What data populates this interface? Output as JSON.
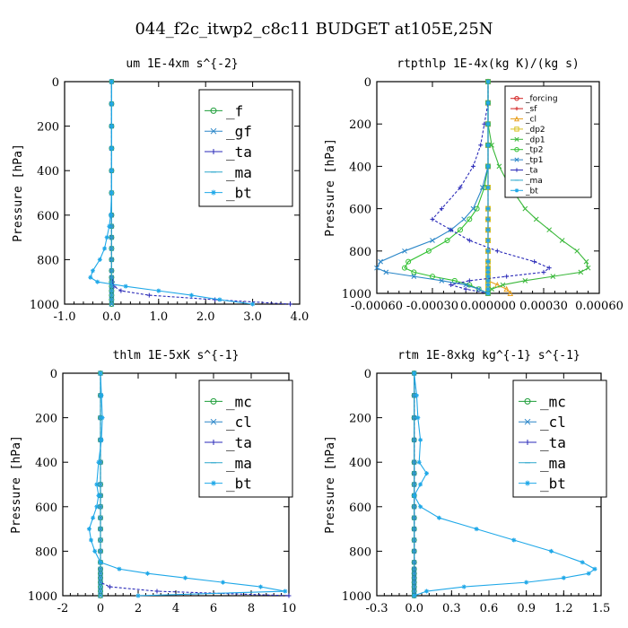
{
  "figure": {
    "title": "044_f2c_itwp2_c8c11  BUDGET at105E,25N"
  },
  "chart_data": [
    {
      "type": "line",
      "title": "um  1E-4xm s^{-2}",
      "ylabel": "Pressure [hPa]",
      "xlim": [
        -1.0,
        4.0
      ],
      "ylim": [
        1000,
        0
      ],
      "xticks": [
        -1.0,
        0.0,
        1.0,
        2.0,
        3.0,
        4.0
      ],
      "xtick_labels": [
        "-1.0",
        "0.0",
        "1.0",
        "2.0",
        "3.0",
        "4.0"
      ],
      "yticks": [
        0,
        200,
        400,
        600,
        800,
        1000
      ],
      "ytick_labels": [
        "0",
        "200",
        "400",
        "600",
        "800",
        "1000"
      ],
      "legend_style": "big",
      "y": [
        0,
        100,
        200,
        300,
        400,
        500,
        600,
        650,
        700,
        750,
        800,
        850,
        880,
        900,
        920,
        940,
        960,
        980,
        1000
      ],
      "series": [
        {
          "name": "_f",
          "color": "#1e9e3a",
          "marker": "o",
          "values": [
            0,
            0,
            0,
            0,
            0,
            0,
            0,
            0,
            0,
            0,
            0,
            0,
            0,
            0,
            0,
            0,
            0,
            0,
            0
          ]
        },
        {
          "name": "_gf",
          "color": "#2a86c8",
          "marker": "x",
          "values": [
            0,
            0,
            0,
            0,
            0,
            0,
            0,
            0,
            0,
            0,
            0,
            0,
            0,
            0,
            0,
            0,
            0,
            0,
            0
          ]
        },
        {
          "name": "_ta",
          "color": "#2a2ab8",
          "marker": "+",
          "values": [
            0,
            0,
            0,
            0,
            0,
            0,
            0,
            0,
            0,
            0,
            0,
            0,
            0,
            0.02,
            0.05,
            0.2,
            0.8,
            2.2,
            3.8
          ]
        },
        {
          "name": "_ma",
          "color": "#2aa6cc",
          "marker": "-",
          "values": [
            0,
            0,
            0,
            0,
            0,
            0,
            0,
            0,
            0,
            0,
            0,
            0,
            0,
            0,
            0,
            0,
            0,
            0,
            0
          ]
        },
        {
          "name": "_bt",
          "color": "#1fa8e8",
          "marker": "*",
          "values": [
            0,
            0,
            0,
            0,
            0,
            0,
            -0.02,
            -0.05,
            -0.1,
            -0.15,
            -0.25,
            -0.4,
            -0.45,
            -0.3,
            0.3,
            1.0,
            1.7,
            2.3,
            3.0
          ]
        }
      ]
    },
    {
      "type": "line",
      "title": "rtpthlp  1E-4x(kg K)/(kg s)",
      "ylabel": "Pressure [hPa]",
      "xlim": [
        -0.0006,
        0.0006
      ],
      "ylim": [
        1000,
        0
      ],
      "xticks": [
        -0.0006,
        -0.0003,
        0.0,
        0.0003,
        0.0006
      ],
      "xtick_labels": [
        "-0.00060",
        "-0.00030",
        "0.000000",
        "0.00030",
        "0.00060"
      ],
      "yticks": [
        0,
        200,
        400,
        600,
        800,
        1000
      ],
      "ytick_labels": [
        "0",
        "200",
        "400",
        "600",
        "800",
        "1000"
      ],
      "legend_style": "small",
      "y": [
        0,
        100,
        200,
        300,
        400,
        500,
        600,
        650,
        700,
        750,
        800,
        850,
        880,
        900,
        920,
        940,
        960,
        980,
        1000
      ],
      "series": [
        {
          "name": "_forcing",
          "color": "#d22020",
          "marker": "o",
          "values": [
            0,
            0,
            0,
            0,
            0,
            0,
            0,
            0,
            0,
            0,
            0,
            0,
            0,
            0,
            0,
            0,
            0,
            0,
            0
          ]
        },
        {
          "name": "_sf",
          "color": "#d22020",
          "marker": "+",
          "values": [
            0,
            0,
            0,
            0,
            0,
            0,
            0,
            0,
            0,
            0,
            0,
            0,
            0,
            0,
            0,
            0,
            0,
            0,
            0
          ]
        },
        {
          "name": "_cl",
          "color": "#e8a020",
          "marker": "^",
          "values": [
            0,
            0,
            0,
            0,
            0,
            0,
            0,
            0,
            0,
            0,
            0,
            0,
            0,
            0,
            0,
            0,
            5e-05,
            0.0001,
            0.00012
          ]
        },
        {
          "name": "_dp2",
          "color": "#d8c020",
          "marker": "s",
          "values": [
            0,
            0,
            0,
            0,
            0,
            0,
            0,
            0,
            0,
            0,
            0,
            0,
            0,
            0,
            0,
            0,
            0,
            0,
            0
          ]
        },
        {
          "name": "_dp1",
          "color": "#3ab83a",
          "marker": "x",
          "values": [
            0,
            0,
            0,
            2e-05,
            6e-05,
            0.00012,
            0.0002,
            0.00026,
            0.00033,
            0.0004,
            0.00048,
            0.00053,
            0.00054,
            0.0005,
            0.00035,
            0.0002,
            8e-05,
            2e-05,
            0
          ]
        },
        {
          "name": "_tp2",
          "color": "#30c030",
          "marker": "o",
          "values": [
            0,
            0,
            0,
            0,
            0,
            -2e-05,
            -6e-05,
            -0.0001,
            -0.00015,
            -0.00022,
            -0.00032,
            -0.00043,
            -0.00045,
            -0.0004,
            -0.0003,
            -0.00018,
            -0.0001,
            -5e-05,
            0
          ]
        },
        {
          "name": "_tp1",
          "color": "#2a86c8",
          "marker": "x",
          "values": [
            0,
            0,
            0,
            0,
            0,
            -3e-05,
            -8e-05,
            -0.00013,
            -0.0002,
            -0.0003,
            -0.00045,
            -0.00058,
            -0.0006,
            -0.00055,
            -0.0004,
            -0.00025,
            -0.00012,
            -5e-05,
            0
          ]
        },
        {
          "name": "_ta",
          "color": "#2a2ab8",
          "marker": "+",
          "values": [
            0,
            0,
            -2e-05,
            -4e-05,
            -8e-05,
            -0.00015,
            -0.00025,
            -0.0003,
            -0.0002,
            -0.0001,
            5e-05,
            0.00025,
            0.00033,
            0.0003,
            0.0001,
            -0.0001,
            -0.0002,
            -0.00012,
            0
          ]
        },
        {
          "name": "_ma",
          "color": "#2aa6cc",
          "marker": "-",
          "values": [
            0,
            0,
            0,
            0,
            0,
            0,
            0,
            0,
            0,
            0,
            0,
            0,
            0,
            0,
            0,
            0,
            0,
            0,
            0
          ]
        },
        {
          "name": "_bt",
          "color": "#1fa8e8",
          "marker": "*",
          "values": [
            0,
            0,
            0,
            0,
            0,
            0,
            0,
            0,
            0,
            0,
            0,
            0,
            0,
            0,
            0,
            0,
            0,
            0,
            0
          ]
        }
      ]
    },
    {
      "type": "line",
      "title": "thlm  1E-5xK s^{-1}",
      "ylabel": "Pressure [hPa]",
      "xlim": [
        -2,
        10
      ],
      "ylim": [
        1000,
        0
      ],
      "xticks": [
        -2,
        0,
        2,
        4,
        6,
        8,
        10
      ],
      "xtick_labels": [
        "-2",
        "0",
        "2",
        "4",
        "6",
        "8",
        "10"
      ],
      "yticks": [
        0,
        200,
        400,
        600,
        800,
        1000
      ],
      "ytick_labels": [
        "0",
        "200",
        "400",
        "600",
        "800",
        "1000"
      ],
      "legend_style": "big",
      "y": [
        0,
        100,
        200,
        300,
        400,
        500,
        550,
        600,
        650,
        700,
        750,
        800,
        850,
        880,
        900,
        920,
        940,
        960,
        980,
        1000
      ],
      "series": [
        {
          "name": "_mc",
          "color": "#1e9e3a",
          "marker": "o",
          "values": [
            0,
            0,
            0,
            0,
            0,
            0,
            0,
            0,
            0,
            0,
            0,
            0,
            0,
            0,
            0,
            0,
            0,
            0,
            0,
            0
          ]
        },
        {
          "name": "_cl",
          "color": "#2a86c8",
          "marker": "x",
          "values": [
            0,
            0,
            0,
            0,
            0,
            0,
            0,
            0,
            0,
            0,
            0,
            0,
            0,
            0,
            0,
            0,
            0,
            0,
            0,
            0
          ]
        },
        {
          "name": "_ta",
          "color": "#2a2ab8",
          "marker": "+",
          "values": [
            0,
            0,
            0,
            0,
            0,
            0,
            0,
            0,
            0,
            0,
            0,
            0,
            0,
            0,
            0,
            0,
            0,
            0.5,
            3,
            10
          ]
        },
        {
          "name": "_ma",
          "color": "#2aa6cc",
          "marker": "-",
          "values": [
            0,
            0,
            0,
            0,
            0,
            0,
            0,
            0,
            0,
            0,
            0,
            0,
            0,
            0,
            0,
            0,
            0,
            0,
            0,
            0
          ]
        },
        {
          "name": "_bt",
          "color": "#1fa8e8",
          "marker": "*",
          "values": [
            0,
            0.05,
            0.1,
            0.05,
            -0.1,
            -0.2,
            -0.1,
            -0.2,
            -0.4,
            -0.6,
            -0.5,
            -0.3,
            0,
            1,
            2.5,
            4.5,
            6.5,
            8.5,
            9.8,
            2
          ]
        }
      ]
    },
    {
      "type": "line",
      "title": "rtm  1E-8xkg kg^{-1} s^{-1}",
      "ylabel": "Pressure [hPa]",
      "xlim": [
        -0.3,
        1.5
      ],
      "ylim": [
        1000,
        0
      ],
      "xticks": [
        -0.3,
        0.0,
        0.3,
        0.6,
        0.9,
        1.2,
        1.5
      ],
      "xtick_labels": [
        "-0.3",
        "0.0",
        "0.3",
        "0.6",
        "0.9",
        "1.2",
        "1.5"
      ],
      "yticks": [
        0,
        200,
        400,
        600,
        800,
        1000
      ],
      "ytick_labels": [
        "0",
        "200",
        "400",
        "600",
        "800",
        "1000"
      ],
      "legend_style": "big",
      "y": [
        0,
        100,
        200,
        300,
        400,
        450,
        500,
        550,
        600,
        650,
        700,
        750,
        800,
        850,
        880,
        900,
        920,
        940,
        960,
        980,
        1000
      ],
      "series": [
        {
          "name": "_mc",
          "color": "#1e9e3a",
          "marker": "o",
          "values": [
            0,
            0,
            0,
            0,
            0,
            0,
            0,
            0,
            0,
            0,
            0,
            0,
            0,
            0,
            0,
            0,
            0,
            0,
            0,
            0,
            0
          ]
        },
        {
          "name": "_cl",
          "color": "#2a86c8",
          "marker": "x",
          "values": [
            0,
            0,
            0,
            0,
            0,
            0,
            0,
            0,
            0,
            0,
            0,
            0,
            0,
            0,
            0,
            0,
            0,
            0,
            0,
            0,
            0
          ]
        },
        {
          "name": "_ta",
          "color": "#2a2ab8",
          "marker": "+",
          "values": [
            0,
            0,
            0,
            0,
            0,
            0,
            0,
            0,
            0,
            0,
            0,
            0,
            0,
            0,
            0,
            0,
            0,
            0,
            0,
            0,
            0
          ]
        },
        {
          "name": "_ma",
          "color": "#2aa6cc",
          "marker": "-",
          "values": [
            0,
            0,
            0,
            0,
            0,
            0,
            0,
            0,
            0,
            0,
            0,
            0,
            0,
            0,
            0,
            0,
            0,
            0,
            0,
            0,
            0
          ]
        },
        {
          "name": "_bt",
          "color": "#1fa8e8",
          "marker": "*",
          "values": [
            0,
            0.02,
            0.03,
            0.05,
            0.04,
            0.1,
            0.05,
            0,
            0.05,
            0.2,
            0.5,
            0.8,
            1.1,
            1.35,
            1.45,
            1.4,
            1.2,
            0.9,
            0.4,
            0.1,
            0
          ]
        }
      ]
    }
  ]
}
